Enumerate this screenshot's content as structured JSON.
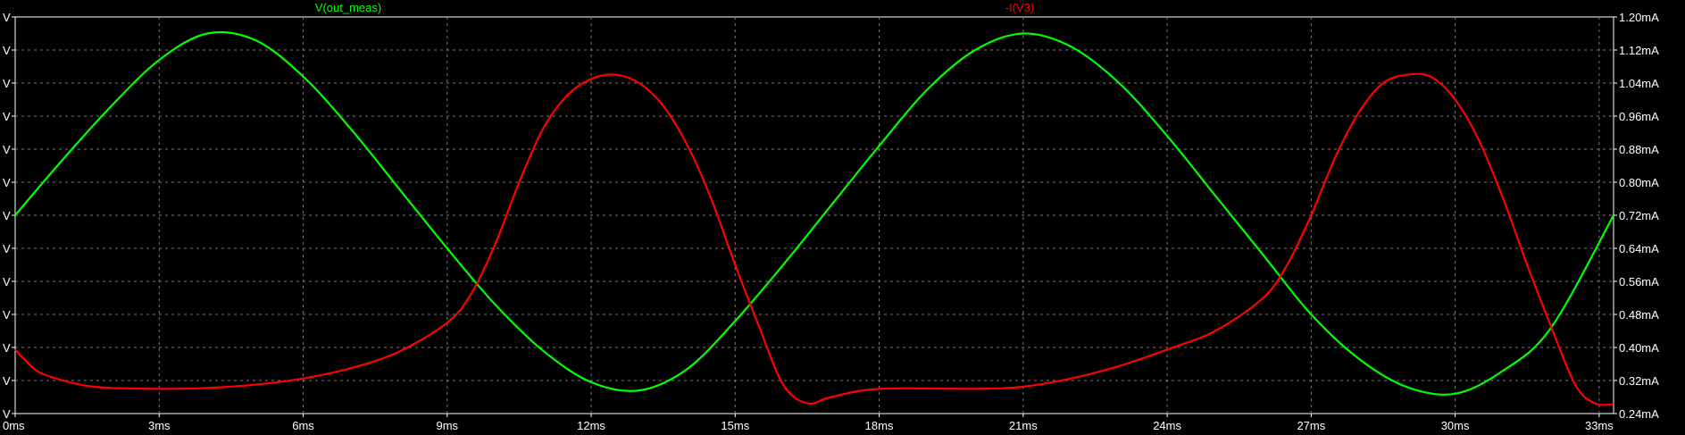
{
  "chart_data": {
    "type": "line",
    "grid": true,
    "grid_style": "dashed",
    "background": "#000000",
    "x_unit": "ms",
    "xlim": [
      0,
      33.3
    ],
    "x_ticks": [
      0,
      3,
      6,
      9,
      12,
      15,
      18,
      21,
      24,
      27,
      30,
      33
    ],
    "x_tick_labels": [
      "0ms",
      "3ms",
      "6ms",
      "9ms",
      "12ms",
      "15ms",
      "18ms",
      "21ms",
      "24ms",
      "27ms",
      "30ms",
      "33ms"
    ],
    "y_left_ticks": [
      0,
      1,
      2,
      3,
      4,
      5,
      6,
      7,
      8,
      9,
      10,
      11,
      12
    ],
    "y_left_tick_labels": [
      "V",
      "V",
      "V",
      "V",
      "V",
      "V",
      "V",
      "V",
      "V",
      "V",
      "V",
      "V",
      "V"
    ],
    "y_right_unit": "mA",
    "y_right_lim": [
      0.24,
      1.2
    ],
    "y_right_ticks": [
      0.24,
      0.32,
      0.4,
      0.48,
      0.56,
      0.64,
      0.72,
      0.8,
      0.88,
      0.96,
      1.04,
      1.12,
      1.2
    ],
    "y_right_tick_labels": [
      "0.24mA",
      "0.32mA",
      "0.40mA",
      "0.48mA",
      "0.56mA",
      "0.64mA",
      "0.72mA",
      "0.80mA",
      "0.88mA",
      "0.96mA",
      "1.04mA",
      "1.12mA",
      "1.20mA"
    ],
    "series": [
      {
        "name": "V(out_meas)",
        "color": "#00ff00",
        "axis": "left",
        "x": [
          0,
          1,
          2,
          3,
          4,
          5,
          6,
          7,
          8,
          9,
          10,
          11,
          12,
          13,
          14,
          15,
          16,
          17,
          18,
          19,
          20,
          21,
          22,
          23,
          24,
          25,
          26,
          27,
          28,
          29,
          30,
          31,
          32,
          33.3
        ],
        "values": [
          6.0,
          7.7,
          9.3,
          10.7,
          11.5,
          11.3,
          10.2,
          8.6,
          6.8,
          5.0,
          3.3,
          1.9,
          0.95,
          0.7,
          1.35,
          2.8,
          4.5,
          6.3,
          8.1,
          9.8,
          11.0,
          11.5,
          11.1,
          10.0,
          8.4,
          6.6,
          4.8,
          3.0,
          1.65,
          0.8,
          0.6,
          1.3,
          2.6,
          6.0
        ]
      },
      {
        "name": "-I(V3)",
        "color": "#ff0000",
        "axis": "right",
        "x": [
          0,
          0.2,
          0.5,
          1,
          1.5,
          2,
          3,
          4,
          5,
          6,
          7,
          8,
          9,
          9.5,
          10,
          10.5,
          11,
          11.5,
          12,
          12.5,
          13,
          13.5,
          14,
          14.5,
          15,
          15.5,
          16,
          16.5,
          17,
          18,
          20,
          21,
          22,
          23,
          24,
          25,
          26,
          26.5,
          27,
          27.5,
          28,
          28.5,
          29,
          29.5,
          30,
          30.5,
          31,
          31.5,
          32,
          32.5,
          32.9,
          33.3
        ],
        "values": [
          0.395,
          0.37,
          0.34,
          0.32,
          0.307,
          0.302,
          0.3,
          0.302,
          0.31,
          0.325,
          0.35,
          0.39,
          0.46,
          0.53,
          0.65,
          0.8,
          0.93,
          1.01,
          1.05,
          1.06,
          1.04,
          0.985,
          0.89,
          0.76,
          0.6,
          0.45,
          0.31,
          0.265,
          0.28,
          0.3,
          0.3,
          0.305,
          0.325,
          0.355,
          0.395,
          0.44,
          0.52,
          0.6,
          0.72,
          0.86,
          0.97,
          1.04,
          1.06,
          1.055,
          1.0,
          0.9,
          0.76,
          0.6,
          0.45,
          0.31,
          0.265,
          0.262
        ]
      }
    ]
  }
}
